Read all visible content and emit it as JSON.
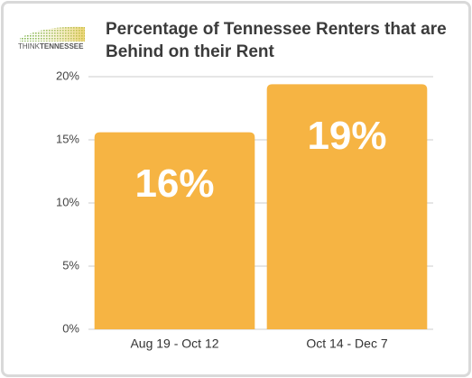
{
  "chart_data": {
    "type": "bar",
    "title": "Percentage of Tennessee Renters that are Behind on their Rent",
    "logo": {
      "think": "THINK",
      "tennessee": "TENNESSEE"
    },
    "categories": [
      "Aug 19 - Oct 12",
      "Oct 14 - Dec 7"
    ],
    "values": [
      15.6,
      19.4
    ],
    "value_labels": [
      "16%",
      "19%"
    ],
    "color": "#f6b443",
    "ylim": [
      0,
      20
    ],
    "yticks": [
      {
        "value": 0,
        "label": "0%"
      },
      {
        "value": 5,
        "label": "5%"
      },
      {
        "value": 10,
        "label": "10%"
      },
      {
        "value": 15,
        "label": "15%"
      },
      {
        "value": 20,
        "label": "20%"
      }
    ],
    "grid": true
  }
}
